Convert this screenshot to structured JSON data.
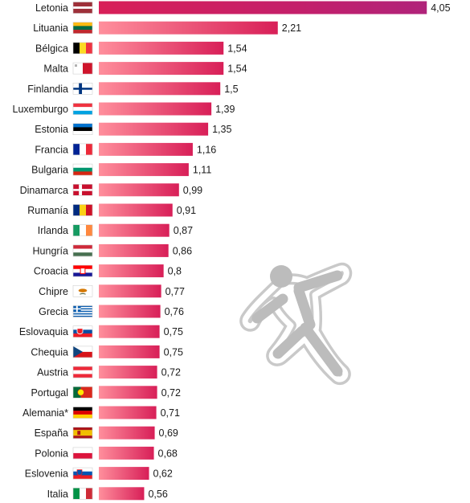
{
  "chart_data": {
    "type": "bar",
    "orientation": "horizontal",
    "categories": [
      "Letonia",
      "Lituania",
      "Bélgica",
      "Malta",
      "Finlandia",
      "Luxemburgo",
      "Estonia",
      "Francia",
      "Bulgaria",
      "Dinamarca",
      "Rumanía",
      "Irlanda",
      "Hungría",
      "Croacia",
      "Chipre",
      "Grecia",
      "Eslovaquia",
      "Chequia",
      "Austria",
      "Portugal",
      "Alemania*",
      "España",
      "Polonia",
      "Eslovenia",
      "Italia"
    ],
    "values": [
      4.05,
      2.21,
      1.54,
      1.54,
      1.5,
      1.39,
      1.35,
      1.16,
      1.11,
      0.99,
      0.91,
      0.87,
      0.86,
      0.8,
      0.77,
      0.76,
      0.75,
      0.75,
      0.72,
      0.72,
      0.71,
      0.69,
      0.68,
      0.62,
      0.56
    ],
    "value_labels": [
      "4,05",
      "2,21",
      "1,54",
      "1,54",
      "1,5",
      "1,39",
      "1,35",
      "1,16",
      "1,11",
      "0,99",
      "0,91",
      "0,87",
      "0,86",
      "0,8",
      "0,77",
      "0,76",
      "0,75",
      "0,75",
      "0,72",
      "0,72",
      "0,71",
      "0,69",
      "0,68",
      "0,62",
      "0,56"
    ],
    "flags": [
      "latvia",
      "lithuania",
      "belgium",
      "malta",
      "finland",
      "luxembourg",
      "estonia",
      "france",
      "bulgaria",
      "denmark",
      "romania",
      "ireland",
      "hungary",
      "croatia",
      "cyprus",
      "greece",
      "slovakia",
      "czechia",
      "austria",
      "portugal",
      "germany",
      "spain",
      "poland",
      "slovenia",
      "italy"
    ],
    "colors": {
      "bar_start": "#ff8f9c",
      "bar_end": "#d81f58",
      "bar_top": "#b0237a",
      "text": "#1a1a1a"
    },
    "illustration": "body-outline-icon"
  }
}
